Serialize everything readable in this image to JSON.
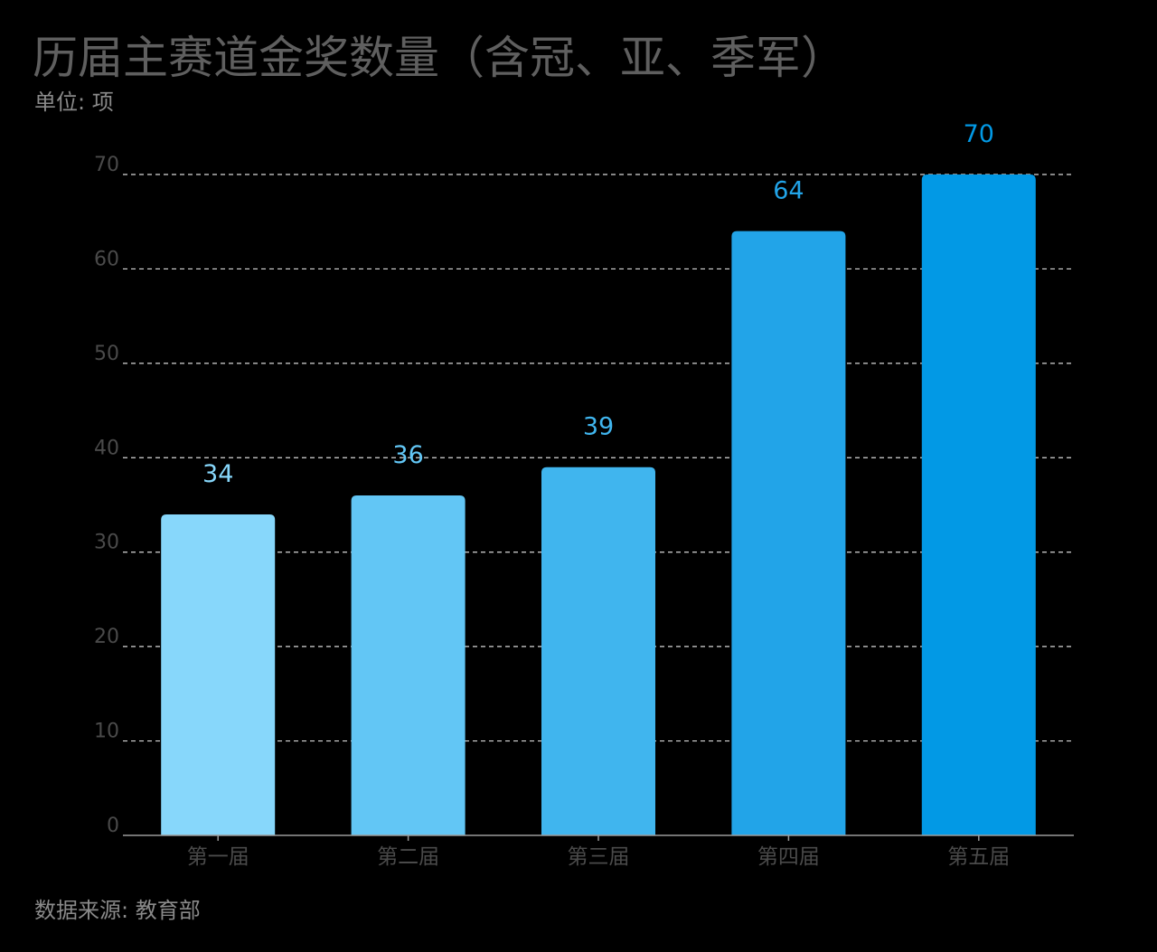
{
  "header": {
    "title": "历届主赛道金奖数量（含冠、亚、季军）",
    "unit": "单位: 项"
  },
  "footer": {
    "source": "数据来源: 教育部"
  },
  "colors": {
    "background": "#000000",
    "title": "#5f5f5f",
    "bars": [
      "#87d7fb",
      "#62c6f5",
      "#40b5ee",
      "#22a4e8",
      "#0299e5"
    ],
    "labels": [
      "#87d7fb",
      "#62c6f5",
      "#40b5ee",
      "#22a4e8",
      "#0299e5"
    ]
  },
  "chart_data": {
    "type": "bar",
    "title": "历届主赛道金奖数量（含冠、亚、季军）",
    "ylabel": "单位: 项",
    "xlabel": "",
    "categories": [
      "第一届",
      "第二届",
      "第三届",
      "第四届",
      "第五届"
    ],
    "values": [
      34,
      36,
      39,
      64,
      70
    ],
    "data_labels": [
      "34",
      "36",
      "39",
      "64",
      "70"
    ],
    "ylim": [
      0,
      70
    ],
    "yticks": [
      0,
      10,
      20,
      30,
      40,
      50,
      60,
      70
    ],
    "grid": true,
    "legend": "none"
  }
}
